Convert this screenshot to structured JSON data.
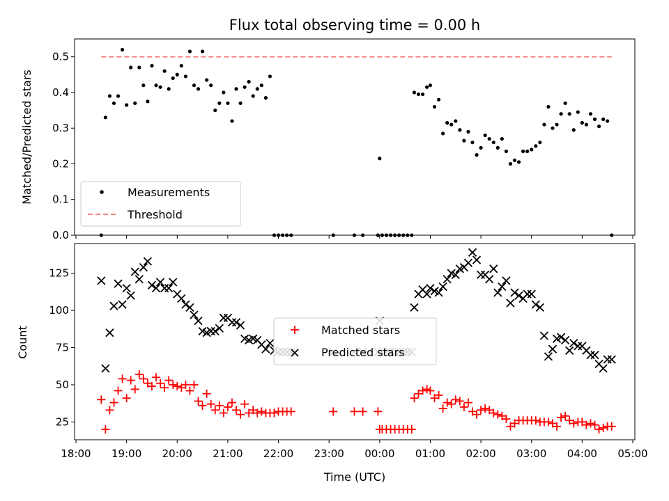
{
  "chart_data": [
    {
      "type": "scatter",
      "title": "Flux total observing time = 0.00 h",
      "ylabel": "Matched/Predicted stars",
      "xlabel": "",
      "ylim": [
        0,
        0.55
      ],
      "yticks": [
        "0.0",
        "0.1",
        "0.2",
        "0.3",
        "0.4",
        "0.5"
      ],
      "legend_position": "lower-left",
      "series": [
        {
          "name": "Measurements",
          "color": "#000000",
          "marker": "dot",
          "x": [
            "18:30",
            "18:35",
            "18:40",
            "18:45",
            "18:50",
            "18:55",
            "19:00",
            "19:05",
            "19:10",
            "19:15",
            "19:20",
            "19:25",
            "19:30",
            "19:35",
            "19:40",
            "19:45",
            "19:50",
            "19:55",
            "20:00",
            "20:05",
            "20:10",
            "20:15",
            "20:20",
            "20:25",
            "20:30",
            "20:35",
            "20:40",
            "20:45",
            "20:50",
            "20:55",
            "21:00",
            "21:05",
            "21:10",
            "21:15",
            "21:20",
            "21:25",
            "21:30",
            "21:35",
            "21:40",
            "21:45",
            "21:50",
            "21:55",
            "22:00",
            "22:05",
            "22:10",
            "22:15",
            "23:05",
            "23:30",
            "23:40",
            "23:58",
            "24:00",
            "24:03",
            "24:08",
            "24:13",
            "24:18",
            "24:23",
            "24:28",
            "24:33",
            "24:38",
            "24:41",
            "24:46",
            "24:51",
            "24:56",
            "25:00",
            "25:05",
            "25:10",
            "25:15",
            "25:20",
            "25:25",
            "25:30",
            "25:35",
            "25:40",
            "25:45",
            "25:50",
            "25:55",
            "26:00",
            "26:05",
            "26:10",
            "26:15",
            "26:20",
            "26:25",
            "26:30",
            "26:35",
            "26:40",
            "26:45",
            "26:50",
            "26:55",
            "27:00",
            "27:05",
            "27:10",
            "27:15",
            "27:20",
            "27:25",
            "27:30",
            "27:35",
            "27:40",
            "27:45",
            "27:50",
            "27:55",
            "28:00",
            "28:05",
            "28:10",
            "28:15",
            "28:20",
            "28:25",
            "28:30",
            "28:35"
          ],
          "y": [
            0.0,
            0.33,
            0.39,
            0.37,
            0.39,
            0.52,
            0.365,
            0.47,
            0.37,
            0.47,
            0.42,
            0.375,
            0.475,
            0.42,
            0.415,
            0.46,
            0.41,
            0.44,
            0.45,
            0.475,
            0.445,
            0.515,
            0.42,
            0.41,
            0.515,
            0.435,
            0.42,
            0.35,
            0.37,
            0.4,
            0.37,
            0.32,
            0.41,
            0.37,
            0.415,
            0.43,
            0.39,
            0.41,
            0.42,
            0.385,
            0.445,
            0.0,
            0.0,
            0.0,
            0.0,
            0.0,
            0.0,
            0.0,
            0.0,
            0.0,
            0.215,
            0.0,
            0.0,
            0.0,
            0.0,
            0.0,
            0.0,
            0.0,
            0.0,
            0.4,
            0.395,
            0.395,
            0.415,
            0.42,
            0.36,
            0.38,
            0.285,
            0.315,
            0.31,
            0.32,
            0.295,
            0.265,
            0.29,
            0.26,
            0.225,
            0.245,
            0.28,
            0.27,
            0.26,
            0.245,
            0.27,
            0.235,
            0.2,
            0.21,
            0.205,
            0.235,
            0.235,
            0.24,
            0.25,
            0.26,
            0.31,
            0.36,
            0.3,
            0.31,
            0.34,
            0.37,
            0.34,
            0.295,
            0.345,
            0.315,
            0.31,
            0.34,
            0.325,
            0.305,
            0.325,
            0.32,
            0.0
          ]
        },
        {
          "name": "Threshold",
          "color": "#f08080",
          "style": "dashed",
          "x": [
            "18:30",
            "28:35"
          ],
          "y": [
            0.5,
            0.5
          ]
        }
      ]
    },
    {
      "type": "scatter",
      "title": "",
      "ylabel": "Count",
      "xlabel": "Time (UTC)",
      "xlim": [
        "18:00",
        "29:00"
      ],
      "ylim": [
        13,
        145
      ],
      "yticks": [
        "25",
        "50",
        "75",
        "100",
        "125"
      ],
      "xticks": [
        "18:00",
        "19:00",
        "20:00",
        "21:00",
        "22:00",
        "23:00",
        "00:00",
        "01:00",
        "02:00",
        "03:00",
        "04:00",
        "05:00"
      ],
      "legend_position": "center",
      "series": [
        {
          "name": "Matched stars",
          "color": "#ff0000",
          "marker": "plus",
          "x": [
            "18:30",
            "18:35",
            "18:40",
            "18:45",
            "18:50",
            "18:55",
            "19:00",
            "19:05",
            "19:10",
            "19:15",
            "19:20",
            "19:25",
            "19:30",
            "19:35",
            "19:40",
            "19:45",
            "19:50",
            "19:55",
            "20:00",
            "20:05",
            "20:10",
            "20:15",
            "20:20",
            "20:25",
            "20:30",
            "20:35",
            "20:40",
            "20:45",
            "20:50",
            "20:55",
            "21:00",
            "21:05",
            "21:10",
            "21:15",
            "21:20",
            "21:25",
            "21:30",
            "21:35",
            "21:40",
            "21:45",
            "21:50",
            "21:55",
            "22:00",
            "22:05",
            "22:10",
            "22:15",
            "23:05",
            "23:30",
            "23:40",
            "23:58",
            "24:00",
            "24:03",
            "24:08",
            "24:13",
            "24:18",
            "24:23",
            "24:28",
            "24:33",
            "24:38",
            "24:41",
            "24:46",
            "24:51",
            "24:56",
            "25:00",
            "25:05",
            "25:10",
            "25:15",
            "25:20",
            "25:25",
            "25:30",
            "25:35",
            "25:40",
            "25:45",
            "25:50",
            "25:55",
            "26:00",
            "26:05",
            "26:10",
            "26:15",
            "26:20",
            "26:25",
            "26:30",
            "26:35",
            "26:40",
            "26:45",
            "26:50",
            "26:55",
            "27:00",
            "27:05",
            "27:10",
            "27:15",
            "27:20",
            "27:25",
            "27:30",
            "27:35",
            "27:40",
            "27:45",
            "27:50",
            "27:55",
            "28:00",
            "28:05",
            "28:10",
            "28:15",
            "28:20",
            "28:25",
            "28:30",
            "28:35"
          ],
          "y": [
            40,
            20,
            33,
            38,
            46,
            54,
            41,
            53,
            47,
            57,
            54,
            51,
            49,
            55,
            51,
            48,
            53,
            50,
            49,
            48,
            50,
            46,
            50,
            39,
            36,
            44,
            37,
            33,
            36,
            31,
            35,
            38,
            33,
            30,
            37,
            31,
            33,
            31,
            32,
            31,
            31,
            31,
            32,
            32,
            32,
            32,
            32,
            32,
            32,
            32,
            20,
            20,
            20,
            20,
            20,
            20,
            20,
            20,
            20,
            41,
            44,
            46,
            47,
            46,
            41,
            43,
            34,
            38,
            37,
            40,
            39,
            35,
            38,
            32,
            30,
            33,
            34,
            33,
            31,
            30,
            29,
            27,
            22,
            24,
            26,
            26,
            26,
            26,
            26,
            25,
            25,
            25,
            24,
            22,
            28,
            29,
            26,
            24,
            25,
            25,
            23,
            24,
            23,
            20,
            21,
            22,
            22
          ]
        },
        {
          "name": "Predicted stars",
          "color": "#000000",
          "marker": "x",
          "x": [
            "18:30",
            "18:35",
            "18:40",
            "18:45",
            "18:50",
            "18:55",
            "19:00",
            "19:05",
            "19:10",
            "19:15",
            "19:20",
            "19:25",
            "19:30",
            "19:35",
            "19:40",
            "19:45",
            "19:50",
            "19:55",
            "20:00",
            "20:05",
            "20:10",
            "20:15",
            "20:20",
            "20:25",
            "20:30",
            "20:35",
            "20:40",
            "20:45",
            "20:50",
            "20:55",
            "21:00",
            "21:05",
            "21:10",
            "21:15",
            "21:20",
            "21:25",
            "21:30",
            "21:35",
            "21:40",
            "21:45",
            "21:50",
            "21:55",
            "22:00",
            "22:05",
            "22:10",
            "22:15",
            "23:05",
            "23:30",
            "23:40",
            "23:58",
            "24:00",
            "24:03",
            "24:08",
            "24:13",
            "24:18",
            "24:23",
            "24:28",
            "24:33",
            "24:38",
            "24:41",
            "24:46",
            "24:51",
            "24:56",
            "25:00",
            "25:05",
            "25:10",
            "25:15",
            "25:20",
            "25:25",
            "25:30",
            "25:35",
            "25:40",
            "25:45",
            "25:50",
            "25:55",
            "26:00",
            "26:05",
            "26:10",
            "26:15",
            "26:20",
            "26:25",
            "26:30",
            "26:35",
            "26:40",
            "26:45",
            "26:50",
            "26:55",
            "27:00",
            "27:05",
            "27:10",
            "27:15",
            "27:20",
            "27:25",
            "27:30",
            "27:35",
            "27:40",
            "27:45",
            "27:50",
            "27:55",
            "28:00",
            "28:05",
            "28:10",
            "28:15",
            "28:20",
            "28:25",
            "28:30",
            "28:35"
          ],
          "y": [
            120,
            61,
            85,
            103,
            118,
            104,
            115,
            110,
            126,
            121,
            129,
            133,
            117,
            115,
            119,
            115,
            115,
            119,
            111,
            108,
            104,
            102,
            97,
            93,
            86,
            85,
            86,
            86,
            88,
            95,
            95,
            92,
            92,
            90,
            81,
            80,
            81,
            80,
            77,
            74,
            78,
            73,
            72,
            72,
            72,
            72,
            72,
            72,
            72,
            72,
            93,
            72,
            72,
            72,
            72,
            72,
            72,
            72,
            72,
            102,
            111,
            114,
            111,
            115,
            113,
            112,
            116,
            121,
            125,
            124,
            128,
            129,
            132,
            139,
            134,
            124,
            124,
            121,
            128,
            112,
            116,
            120,
            105,
            112,
            110,
            108,
            111,
            111,
            104,
            102,
            83,
            69,
            74,
            81,
            82,
            80,
            73,
            78,
            76,
            76,
            73,
            70,
            70,
            64,
            61,
            67,
            67
          ]
        }
      ]
    }
  ]
}
